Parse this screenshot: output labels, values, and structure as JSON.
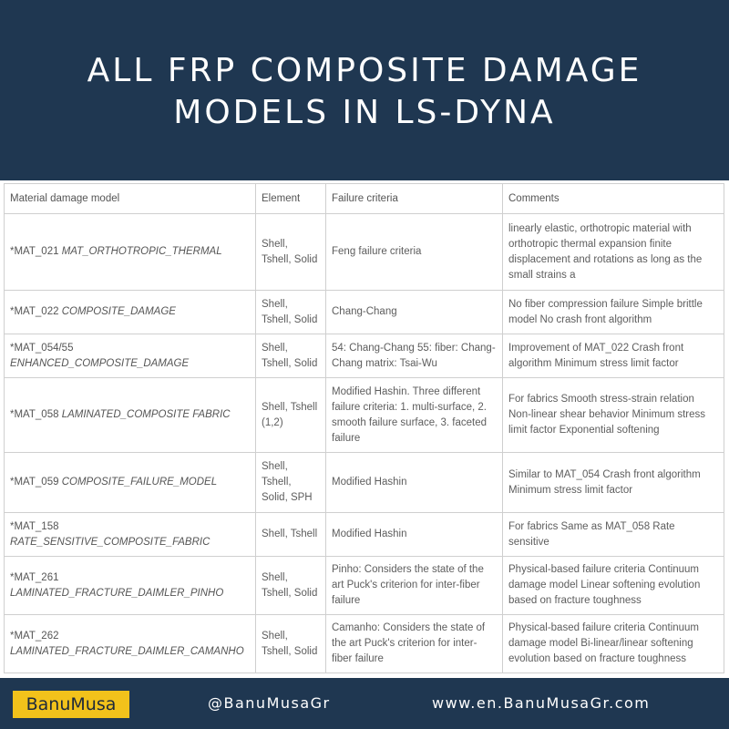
{
  "header": {
    "title_line1": "ALL FRP COMPOSITE DAMAGE",
    "title_line2": "MODELS IN LS-DYNA"
  },
  "table": {
    "columns": [
      "Material damage model",
      "Element",
      "Failure criteria",
      "Comments"
    ],
    "rows": [
      {
        "code": "*MAT_021",
        "name": "MAT_ORTHOTROPIC_THERMAL",
        "element": "Shell, Tshell, Solid",
        "criteria": "Feng failure criteria",
        "comments": "linearly elastic, orthotropic material with orthotropic thermal expansion finite displacement and rotations as long as the small strains a"
      },
      {
        "code": "*MAT_022",
        "name": "COMPOSITE_DAMAGE",
        "element": "Shell, Tshell, Solid",
        "criteria": "Chang-Chang",
        "comments": "No fiber compression failure Simple brittle model No crash front algorithm"
      },
      {
        "code": "*MAT_054/55",
        "name": "ENHANCED_COMPOSITE_DAMAGE",
        "element": "Shell, Tshell, Solid",
        "criteria": "54: Chang-Chang 55: fiber: Chang-Chang matrix: Tsai-Wu",
        "comments": "Improvement of MAT_022 Crash front algorithm Minimum stress limit factor"
      },
      {
        "code": "*MAT_058",
        "name": "LAMINATED_COMPOSITE FABRIC",
        "element": "Shell, Tshell (1,2)",
        "criteria": "Modified Hashin. Three different failure criteria: 1. multi-surface, 2. smooth failure surface, 3. faceted failure",
        "comments": "For fabrics Smooth stress-strain relation Non-linear shear behavior Minimum stress limit factor Exponential softening"
      },
      {
        "code": "*MAT_059",
        "name": "COMPOSITE_FAILURE_MODEL",
        "element": "Shell, Tshell, Solid, SPH",
        "criteria": "Modified Hashin",
        "comments": "Similar to MAT_054 Crash front algorithm Minimum stress limit factor"
      },
      {
        "code": "*MAT_158",
        "name": "RATE_SENSITIVE_COMPOSITE_FABRIC",
        "element": "Shell, Tshell",
        "criteria": "Modified Hashin",
        "comments": "For fabrics Same as MAT_058 Rate sensitive"
      },
      {
        "code": "*MAT_261",
        "name": "LAMINATED_FRACTURE_DAIMLER_PINHO",
        "element": "Shell, Tshell, Solid",
        "criteria": "Pinho: Considers the state of the art Puck's criterion for inter-fiber failure",
        "comments": "Physical-based failure criteria Continuum damage model Linear softening evolution based on fracture toughness"
      },
      {
        "code": "*MAT_262",
        "name": "LAMINATED_FRACTURE_DAIMLER_CAMANHO",
        "element": "Shell, Tshell, Solid",
        "criteria": "Camanho: Considers the state of the art Puck's criterion for inter-fiber failure",
        "comments": "Physical-based failure criteria Continuum damage model Bi-linear/linear softening evolution based on fracture toughness"
      }
    ]
  },
  "footer": {
    "logo_text": "BanuMusa",
    "handle": "@BanuMusaGr",
    "website": "www.en.BanuMusaGr.com"
  },
  "colors": {
    "navy": "#1f3751",
    "logo_yellow": "#f2c21b",
    "text_gray": "#5d5d5d",
    "border": "#cfcfcf"
  }
}
